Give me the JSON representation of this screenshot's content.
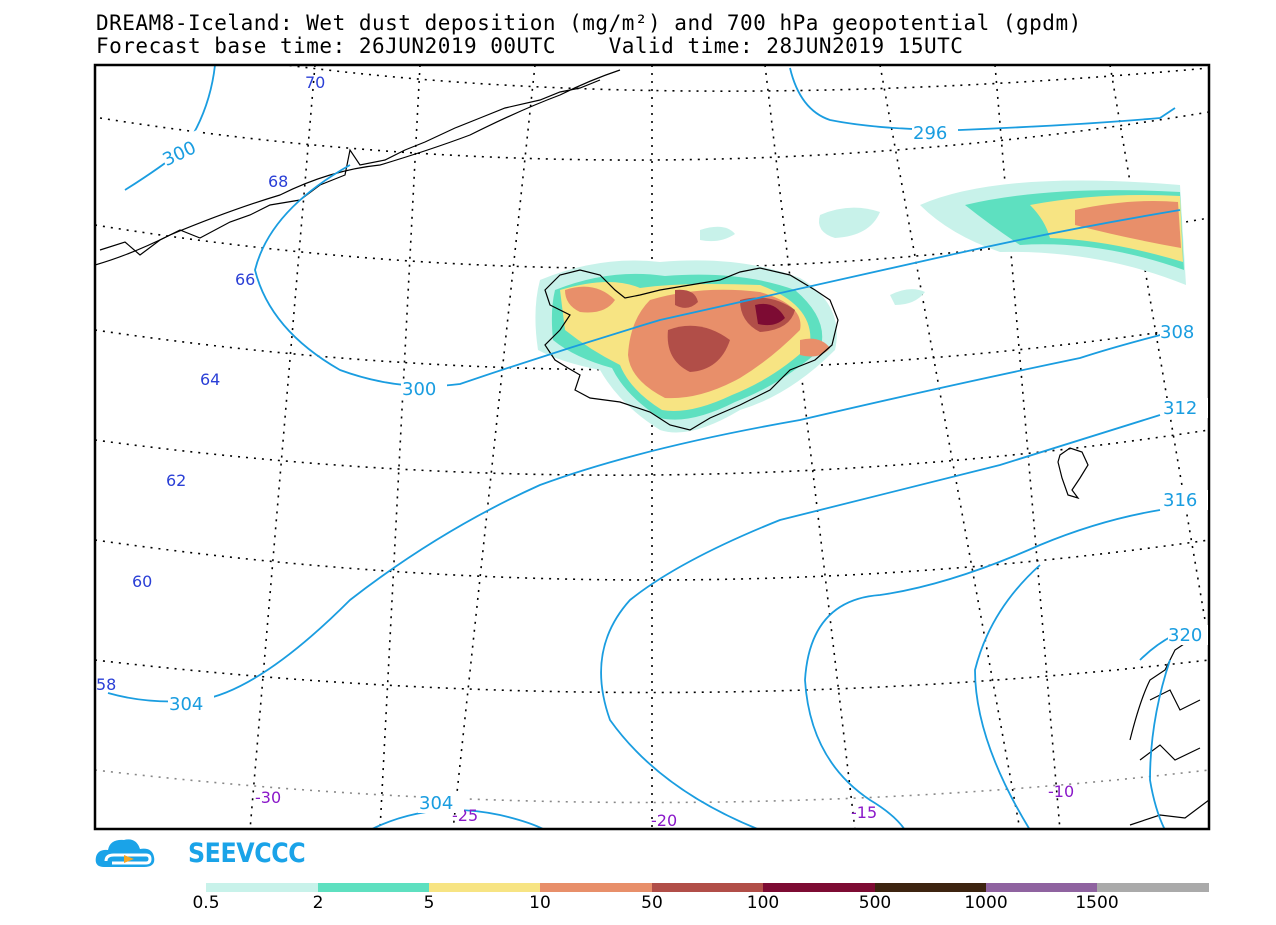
{
  "title": {
    "line1": "DREAM8-Iceland: Wet dust deposition (mg/m²) and 700 hPa geopotential (gpdm)",
    "line2": "Forecast base time: 26JUN2019 00UTC    Valid time: 28JUN2019 15UTC"
  },
  "latitude_labels": [
    "70",
    "68",
    "66",
    "64",
    "62",
    "60",
    "58"
  ],
  "longitude_labels": [
    "-30",
    "-25",
    "-20",
    "-15",
    "-10"
  ],
  "contour_labels": [
    "300",
    "296",
    "300",
    "308",
    "312",
    "316",
    "320",
    "304",
    "304"
  ],
  "colorbar": {
    "labels": [
      "0.5",
      "2",
      "5",
      "10",
      "50",
      "100",
      "500",
      "1000",
      "1500"
    ],
    "colors": [
      "#c8f2ea",
      "#5ee0c0",
      "#f7e483",
      "#e88f6a",
      "#b14e48",
      "#7d0b33",
      "#3d2410",
      "#8f63a0",
      "#aaaaaa"
    ]
  },
  "logo": {
    "text": "SEEVCCC",
    "icon": "cloud-arrow-icon"
  },
  "colors": {
    "contour": "#1a9de0",
    "lat_label": "#2a3fd6",
    "lon_label": "#8a18c9"
  }
}
